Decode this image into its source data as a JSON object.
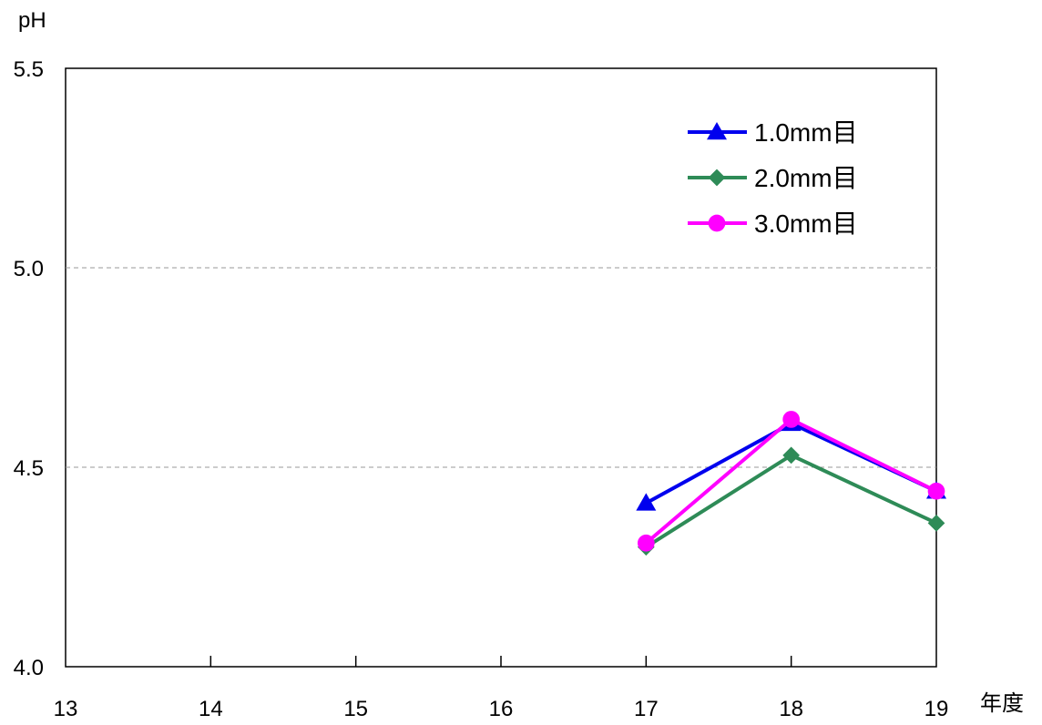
{
  "chart_data": {
    "type": "line",
    "ylabel": "pH",
    "xlabel": "年度",
    "x": [
      13,
      14,
      15,
      16,
      17,
      18,
      19
    ],
    "x_tick_labels": [
      "13",
      "14",
      "15",
      "16",
      "17",
      "18",
      "19"
    ],
    "ylim": [
      4.0,
      5.5
    ],
    "y_tick_labels": [
      "4.0",
      "4.5",
      "5.0",
      "5.5"
    ],
    "grid": "horizontal dashed",
    "legend_position": "top-right",
    "series": [
      {
        "name": "1.0mm目",
        "color": "#0000ee",
        "marker": "triangle",
        "points": [
          [
            17,
            4.41
          ],
          [
            18,
            4.61
          ],
          [
            19,
            4.44
          ]
        ]
      },
      {
        "name": "2.0mm目",
        "color": "#2e8b57",
        "marker": "diamond",
        "points": [
          [
            17,
            4.3
          ],
          [
            18,
            4.53
          ],
          [
            19,
            4.36
          ]
        ]
      },
      {
        "name": "3.0mm目",
        "color": "#ff00ff",
        "marker": "circle",
        "points": [
          [
            17,
            4.31
          ],
          [
            18,
            4.62
          ],
          [
            19,
            4.44
          ]
        ]
      }
    ]
  }
}
